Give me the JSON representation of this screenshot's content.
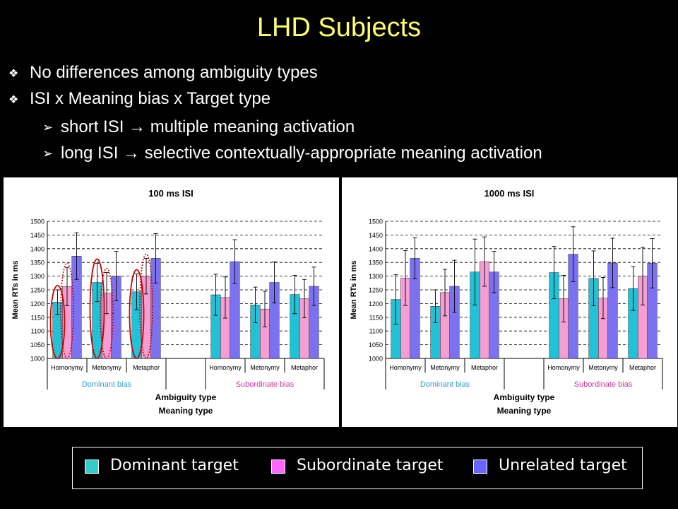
{
  "slide": {
    "title": "LHD Subjects",
    "bullets": [
      "No differences among ambiguity types",
      "ISI x Meaning bias x Target type"
    ],
    "sub_bullets": [
      "short ISI → multiple meaning activation",
      "long ISI → selective contextually-appropriate meaning activation"
    ]
  },
  "legend": [
    {
      "label": "Dominant target",
      "color": "#33cccc"
    },
    {
      "label": "Subordinate target",
      "color": "#ff66ff"
    },
    {
      "label": "Unrelated target",
      "color": "#6666ff"
    }
  ],
  "chart_data": [
    {
      "type": "bar",
      "title": "100 ms ISI",
      "ylabel": "Mean RTs in ms",
      "xlabel": "Ambiguity type",
      "xlabel2": "Meaning type",
      "ylim": [
        1000,
        1500
      ],
      "yticks": [
        1000,
        1050,
        1100,
        1150,
        1200,
        1250,
        1300,
        1350,
        1400,
        1450,
        1500
      ],
      "grid": "dashed horizontal",
      "groups": [
        {
          "name": "Dominant bias",
          "color": "#3399cc",
          "categories": [
            "Homonymy",
            "Metonymy",
            "Metaphor"
          ]
        },
        {
          "name": "Subordinate bias",
          "color": "#cc3399",
          "categories": [
            "Homonymy",
            "Metonymy",
            "Metaphor"
          ]
        }
      ],
      "series": [
        {
          "name": "Dominant target",
          "color": "#1fc2d6",
          "values": [
            1205,
            1277,
            1243,
            1232,
            1195,
            1233
          ],
          "errors": [
            45,
            70,
            65,
            75,
            65,
            70
          ]
        },
        {
          "name": "Subordinate target",
          "color": "#f59ed2",
          "values": [
            1262,
            1238,
            1300,
            1222,
            1180,
            1218
          ],
          "errors": [
            70,
            75,
            65,
            75,
            65,
            70
          ]
        },
        {
          "name": "Unrelated target",
          "color": "#7b72f2",
          "values": [
            1373,
            1300,
            1365,
            1353,
            1277,
            1263
          ],
          "errors": [
            85,
            90,
            90,
            80,
            75,
            70
          ]
        }
      ],
      "annotations": "red ovals mark Dominant (solid) and Subordinate (dotted) bars in the Dominant bias group"
    },
    {
      "type": "bar",
      "title": "1000 ms ISI",
      "ylabel": "Mean RTs in ms",
      "xlabel": "Ambiguity type",
      "xlabel2": "Meaning type",
      "ylim": [
        1000,
        1500
      ],
      "yticks": [
        1000,
        1050,
        1100,
        1150,
        1200,
        1250,
        1300,
        1350,
        1400,
        1450,
        1500
      ],
      "grid": "dashed horizontal",
      "groups": [
        {
          "name": "Dominant bias",
          "color": "#3399cc",
          "categories": [
            "Homonymy",
            "Metonymy",
            "Metaphor"
          ]
        },
        {
          "name": "Subordinate bias",
          "color": "#cc3399",
          "categories": [
            "Homonymy",
            "Metonymy",
            "Metaphor"
          ]
        }
      ],
      "series": [
        {
          "name": "Dominant target",
          "color": "#1fc2d6",
          "values": [
            1215,
            1190,
            1315,
            1313,
            1292,
            1255
          ],
          "errors": [
            90,
            60,
            120,
            95,
            100,
            80
          ]
        },
        {
          "name": "Subordinate target",
          "color": "#f59ed2",
          "values": [
            1293,
            1240,
            1353,
            1218,
            1220,
            1300
          ],
          "errors": [
            100,
            85,
            90,
            85,
            75,
            105
          ]
        },
        {
          "name": "Unrelated target",
          "color": "#7b72f2",
          "values": [
            1365,
            1263,
            1315,
            1380,
            1348,
            1347
          ],
          "errors": [
            75,
            95,
            75,
            100,
            90,
            90
          ]
        }
      ]
    }
  ]
}
